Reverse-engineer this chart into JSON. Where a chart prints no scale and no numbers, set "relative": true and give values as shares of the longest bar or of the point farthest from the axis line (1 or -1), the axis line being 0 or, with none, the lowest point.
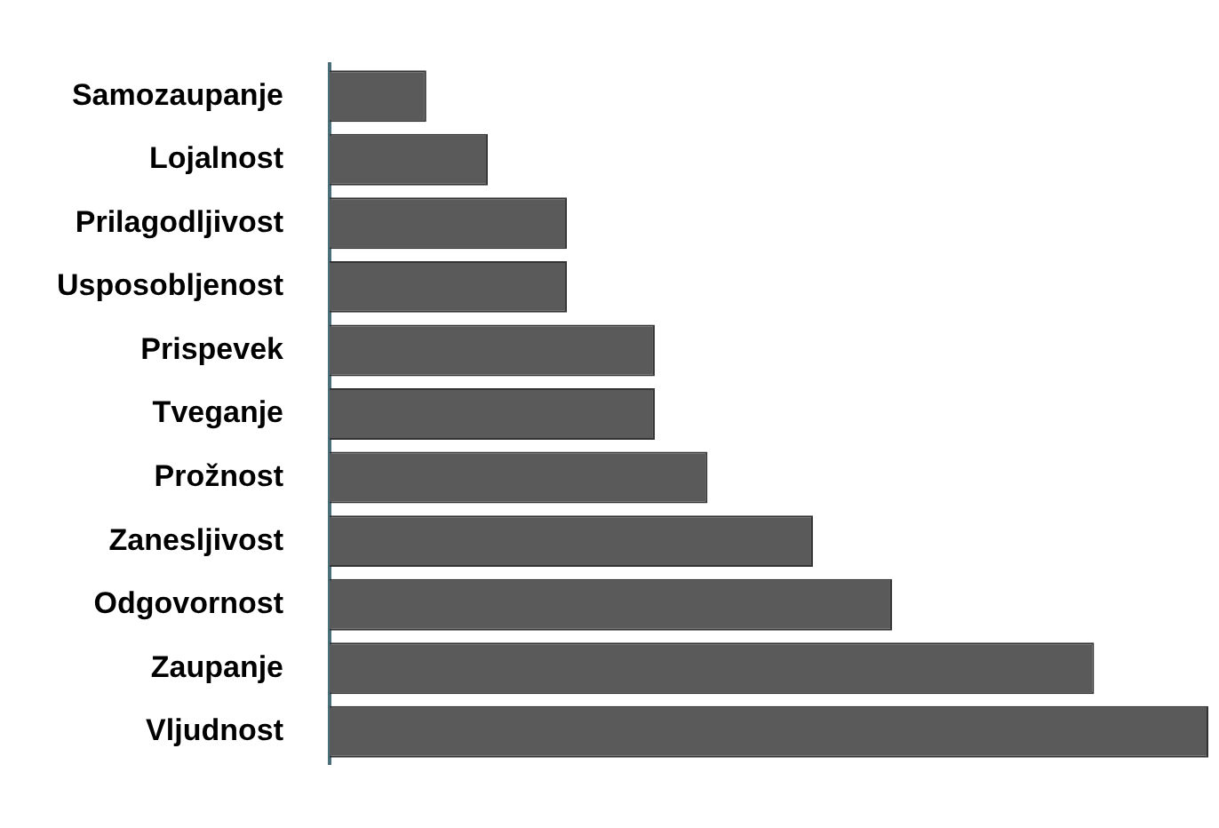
{
  "chart_data": {
    "type": "bar",
    "orientation": "horizontal",
    "relative": true,
    "categories": [
      "Samozaupanje",
      "Lojalnost",
      "Prilagodljivost",
      "Usposobljenost",
      "Prispevek",
      "Tveganje",
      "Prožnost",
      "Zanesljivost",
      "Odgovornost",
      "Zaupanje",
      "Vljudnost"
    ],
    "values": [
      0.11,
      0.18,
      0.27,
      0.27,
      0.37,
      0.37,
      0.43,
      0.55,
      0.64,
      0.87,
      1
    ],
    "color": "#5a5a5a"
  }
}
